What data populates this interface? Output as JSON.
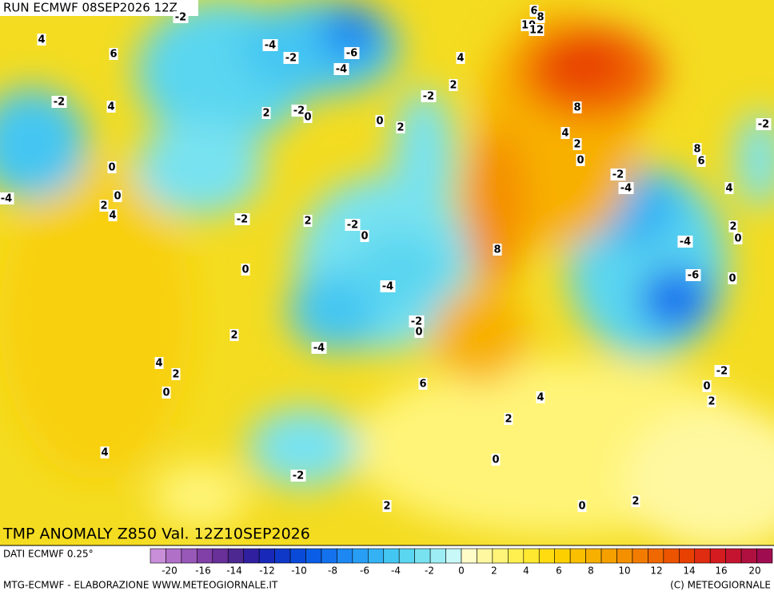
{
  "header": {
    "run": "RUN ECMWF 08SEP2026 12Z"
  },
  "map": {
    "title": "TMP ANOMALY Z850 Val. 12Z10SEP2026",
    "contour_labels": [
      -2,
      6,
      8,
      10,
      12,
      4,
      6,
      -4,
      -2,
      -6,
      -4,
      4,
      2,
      -2,
      -2,
      4,
      2,
      -2,
      0,
      0,
      2,
      8,
      4,
      2,
      0,
      8,
      6,
      -2,
      0,
      0,
      2,
      4,
      -4,
      -2,
      2,
      -2,
      0,
      -2,
      -4,
      4,
      2,
      0,
      -4,
      8,
      0,
      -6,
      0,
      -4,
      -2,
      0,
      2,
      -4,
      4,
      2,
      0,
      6,
      -2,
      0,
      2,
      4,
      2,
      4,
      0,
      -2,
      2,
      0,
      2
    ]
  },
  "legend": {
    "source": "DATI ECMWF 0.25°",
    "colors": [
      "#c88ed8",
      "#b070c8",
      "#9858b8",
      "#8040a8",
      "#683098",
      "#4c2890",
      "#3020a0",
      "#1828b8",
      "#1038c8",
      "#0a4ad8",
      "#0a5ee6",
      "#1472ee",
      "#1e88f2",
      "#289ef4",
      "#34b2f4",
      "#44c6f2",
      "#5ad6f0",
      "#78e2f0",
      "#9ceef4",
      "#c8f8f8",
      "#fffcc8",
      "#fff8a0",
      "#fff478",
      "#fff050",
      "#fee830",
      "#fedc10",
      "#fcd000",
      "#fac000",
      "#f8b000",
      "#f6a000",
      "#f49000",
      "#f27c00",
      "#f06800",
      "#ec5400",
      "#e84000",
      "#e02c10",
      "#d41c20",
      "#c41430",
      "#b01040",
      "#a00c50"
    ],
    "ticks": [
      -20,
      -16,
      -14,
      -12,
      -10,
      -8,
      -6,
      -4,
      -2,
      0,
      2,
      4,
      6,
      8,
      10,
      12,
      14,
      16,
      20
    ]
  },
  "footer": {
    "credit": "MTG-ECMWF - ELABORAZIONE WWW.METEOGIORNALE.IT",
    "copyright": "(C) METEOGIORNALE"
  }
}
